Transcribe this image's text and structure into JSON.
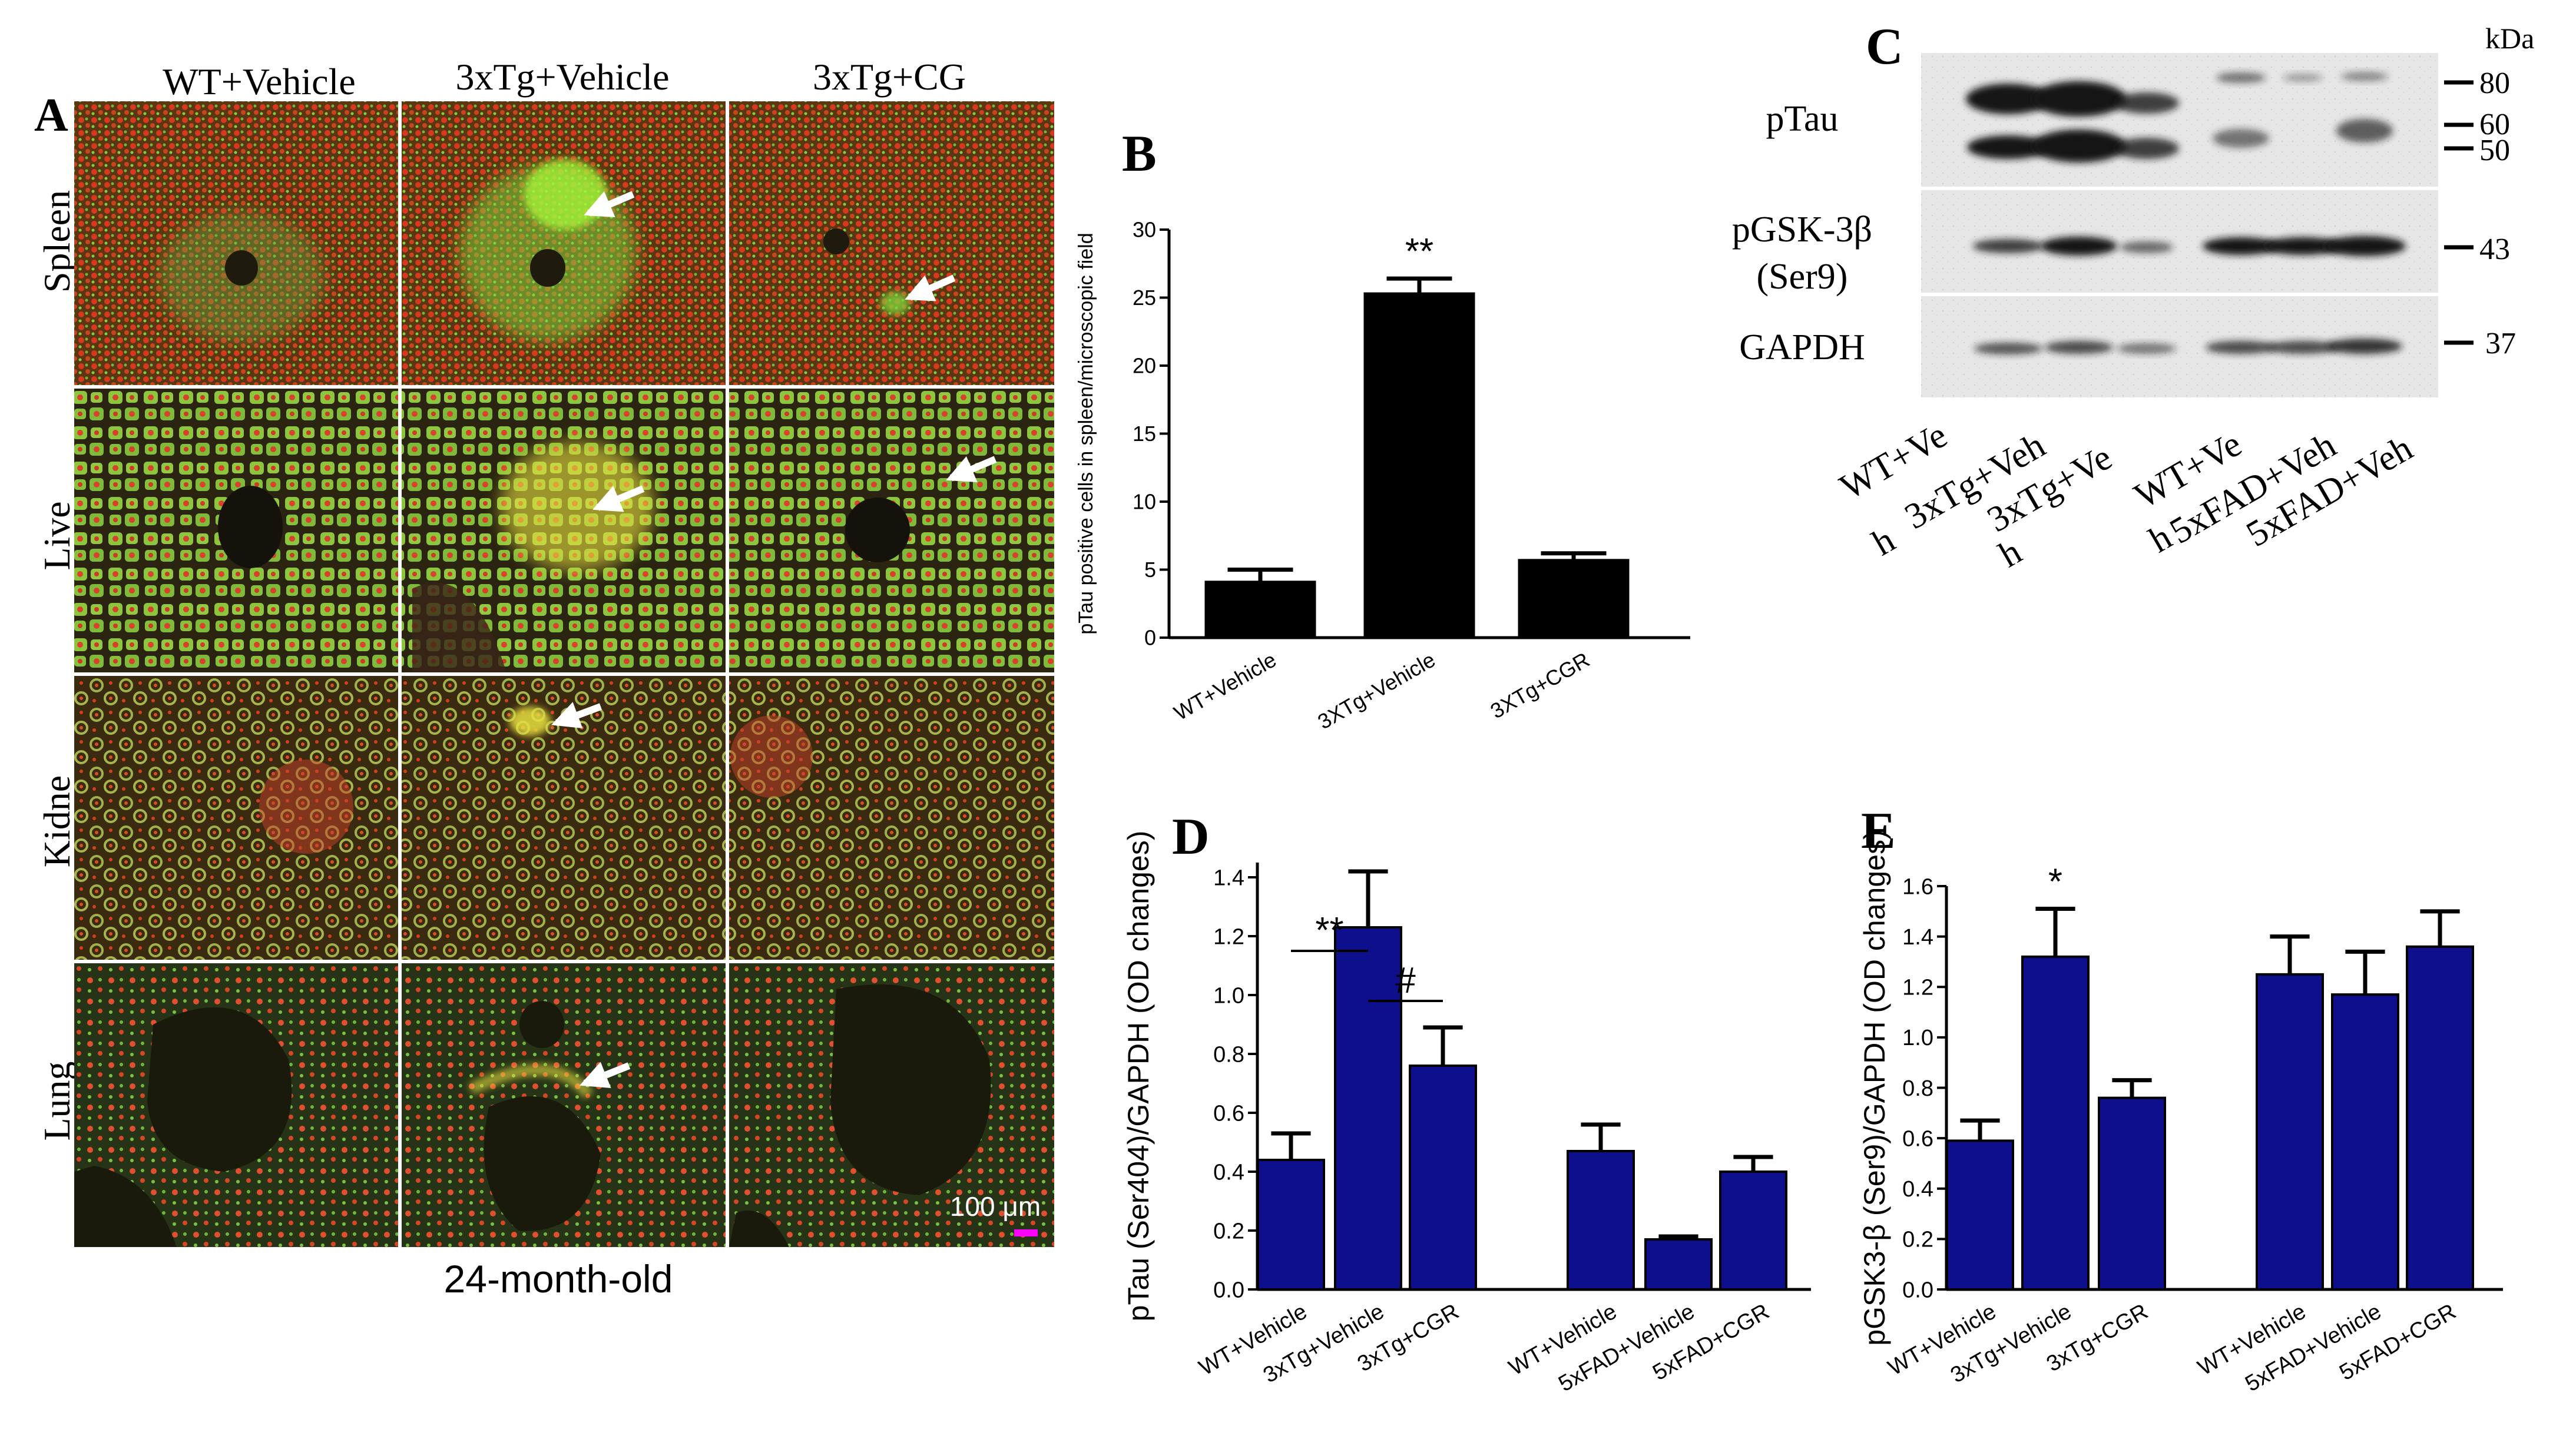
{
  "colors": {
    "tissue_base": "#4a2e12",
    "tissue_red": "#d8381e",
    "tissue_green": "#7ed23a",
    "tissue_bright_green": "#a8ff3a",
    "tissue_yellow": "#e8e040",
    "vessel_dark": "#1f1b0e",
    "bar_black": "#000000",
    "bar_navy": "#0d0f8c",
    "arrow": "#ffffff",
    "scale_bar": "#ff00ff"
  },
  "panel_a": {
    "label": "A",
    "column_headers": [
      "WT+Vehicle",
      "3xTg+Vehicle",
      "3xTg+CG"
    ],
    "row_labels": [
      "Spleen",
      "Live",
      "Kidne",
      "Lung"
    ],
    "scale_label": "100 μm",
    "footer": "24-month-old"
  },
  "panel_c": {
    "label": "C",
    "unit_label": "kDa",
    "row_labels": [
      "pTau",
      "pGSK-3β",
      "(Ser9)",
      "GAPDH"
    ],
    "mw_markers": [
      "80",
      "60",
      "50",
      "43",
      "37"
    ],
    "lane_labels": [
      "WT+Ve",
      "h",
      "3xTg+Veh",
      "3xTg+Ve",
      "h",
      "WT+Ve",
      "h",
      "5xFAD+Veh",
      "5xFAD+Veh"
    ]
  },
  "chart_data": [
    {
      "panel": "B",
      "type": "bar",
      "title": "",
      "categories": [
        "WT+Vehicle",
        "3XTg+Vehicle",
        "3XTg+CGR"
      ],
      "values": [
        4.1,
        25.3,
        5.7
      ],
      "errors": [
        0.9,
        1.1,
        0.5
      ],
      "ylabel": "pTau positive cells in spleen/microscopic field",
      "xlabel": "",
      "ylim": [
        0,
        30
      ],
      "yticks": [
        "0",
        "5",
        "10",
        "15",
        "20",
        "25",
        "30"
      ],
      "annotations": [
        {
          "text": "**",
          "category": "3XTg+Vehicle"
        }
      ],
      "grid": false,
      "bar_color": "#000000"
    },
    {
      "panel": "D",
      "type": "bar",
      "title": "",
      "categories": [
        "WT+Vehicle",
        "3xTg+Vehicle",
        "3xTg+CGR",
        "WT+Vehicle",
        "5xFAD+Vehicle",
        "5xFAD+CGR"
      ],
      "values": [
        0.44,
        1.23,
        0.76,
        0.47,
        0.17,
        0.4
      ],
      "errors": [
        0.09,
        0.19,
        0.13,
        0.09,
        0.01,
        0.05
      ],
      "ylabel": "pTau (Ser404)/GAPDH (OD changes)",
      "xlabel": "",
      "ylim": [
        0,
        1.45
      ],
      "yticks": [
        "0.0",
        "0.2",
        "0.4",
        "0.6",
        "0.8",
        "1.0",
        "1.2",
        "1.4"
      ],
      "annotations": [
        {
          "text": "**",
          "between": [
            "WT+Vehicle",
            "3xTg+Vehicle"
          ]
        },
        {
          "text": "#",
          "between": [
            "3xTg+Vehicle",
            "3xTg+CGR"
          ]
        }
      ],
      "grid": false,
      "bar_color": "#0d0f8c"
    },
    {
      "panel": "E",
      "type": "bar",
      "title": "",
      "categories": [
        "WT+Vehicle",
        "3xTg+Vehicle",
        "3xTg+CGR",
        "WT+Vehicle",
        "5xFAD+Vehicle",
        "5xFAD+CGR"
      ],
      "values": [
        0.59,
        1.32,
        0.76,
        1.25,
        1.17,
        1.36
      ],
      "errors": [
        0.08,
        0.19,
        0.07,
        0.15,
        0.17,
        0.14
      ],
      "ylabel": "pGSK3-β (Ser9)/GAPDH (OD changes)",
      "xlabel": "",
      "ylim": [
        0,
        1.6
      ],
      "yticks": [
        "0.0",
        "0.2",
        "0.4",
        "0.6",
        "0.8",
        "1.0",
        "1.2",
        "1.4",
        "1.6"
      ],
      "annotations": [
        {
          "text": "*",
          "category": "3xTg+Vehicle"
        }
      ],
      "grid": false,
      "bar_color": "#0d0f8c"
    }
  ],
  "panel_labels": {
    "b": "B",
    "d": "D",
    "e": "E"
  }
}
